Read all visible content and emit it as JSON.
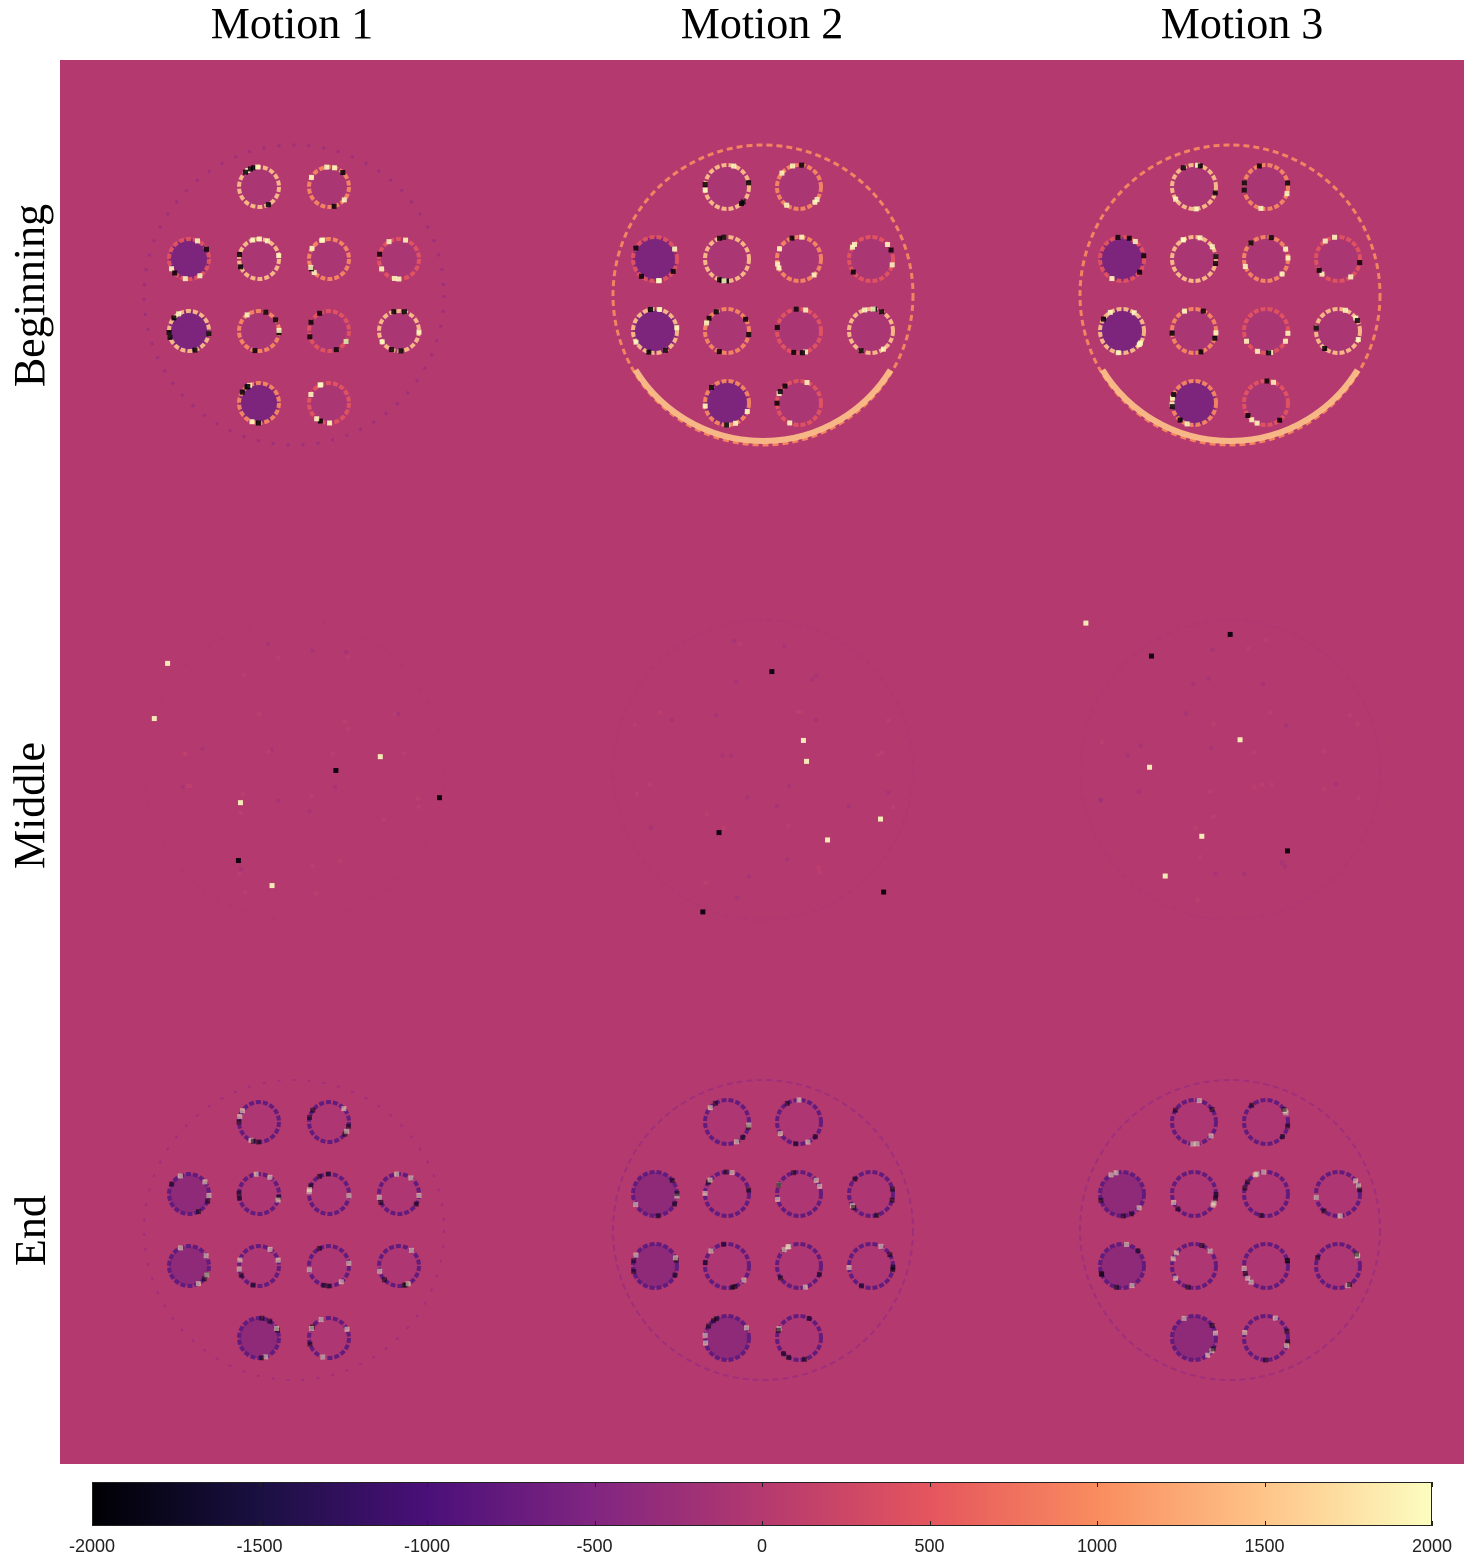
{
  "columns": [
    {
      "label": "Motion 1"
    },
    {
      "label": "Motion 2"
    },
    {
      "label": "Motion 3"
    }
  ],
  "rows": [
    {
      "label": "Beginning"
    },
    {
      "label": "Middle"
    },
    {
      "label": "End"
    }
  ],
  "panels": [
    {
      "row": 0,
      "col": 0,
      "phantom_size": "small",
      "artifact": "strong"
    },
    {
      "row": 0,
      "col": 1,
      "phantom_size": "large",
      "artifact": "strong"
    },
    {
      "row": 0,
      "col": 2,
      "phantom_size": "large",
      "artifact": "strong"
    },
    {
      "row": 1,
      "col": 0,
      "phantom_size": "small",
      "artifact": "faint"
    },
    {
      "row": 1,
      "col": 1,
      "phantom_size": "large",
      "artifact": "faint"
    },
    {
      "row": 1,
      "col": 2,
      "phantom_size": "large",
      "artifact": "faint"
    },
    {
      "row": 2,
      "col": 0,
      "phantom_size": "small",
      "artifact": "moderate"
    },
    {
      "row": 2,
      "col": 1,
      "phantom_size": "large",
      "artifact": "moderate"
    },
    {
      "row": 2,
      "col": 2,
      "phantom_size": "large",
      "artifact": "moderate"
    }
  ],
  "colorbar": {
    "colormap": "magma",
    "min": -2000,
    "max": 2000,
    "ticks": [
      "-2000",
      "-1500",
      "-1000",
      "-500",
      "0",
      "500",
      "1000",
      "1500",
      "2000"
    ],
    "colors": {
      "background": "#b4396f",
      "stops": [
        "#000004",
        "#1a1042",
        "#4a1079",
        "#812581",
        "#b4396f",
        "#e4555e",
        "#f98c5f",
        "#fec488",
        "#fcfdbf"
      ]
    }
  }
}
